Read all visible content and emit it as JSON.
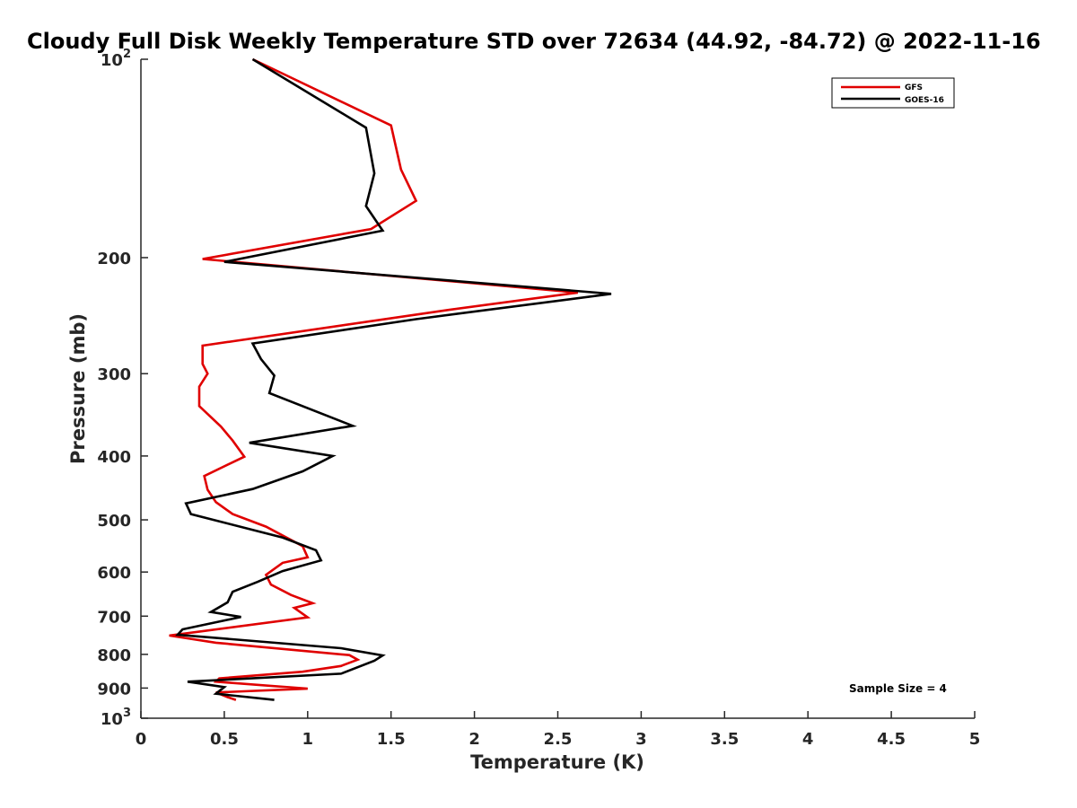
{
  "chart_data": {
    "type": "line",
    "title": "Cloudy Full Disk Weekly Temperature STD over 72634 (44.92, -84.72) @ 2022-11-16",
    "xlabel": "Temperature (K)",
    "ylabel": "Pressure (mb)",
    "xlim": [
      0,
      5
    ],
    "ylim": [
      100,
      1000
    ],
    "yscale": "log",
    "yreversed": true,
    "grid": false,
    "legend_position": "top-right",
    "x_ticks": [
      "0",
      "0.5",
      "1",
      "1.5",
      "2",
      "2.5",
      "3",
      "3.5",
      "4",
      "4.5",
      "5"
    ],
    "y_ticks": [
      {
        "value": 100,
        "base": "10",
        "exp": "2"
      },
      {
        "value": 200,
        "label": "200"
      },
      {
        "value": 300,
        "label": "300"
      },
      {
        "value": 400,
        "label": "400"
      },
      {
        "value": 500,
        "label": "500"
      },
      {
        "value": 600,
        "label": "600"
      },
      {
        "value": 700,
        "label": "700"
      },
      {
        "value": 800,
        "label": "800"
      },
      {
        "value": 900,
        "label": "900"
      },
      {
        "value": 1000,
        "base": "10",
        "exp": "3"
      }
    ],
    "annotation": "Sample Size = 4",
    "series": [
      {
        "name": "GFS",
        "color": "#e00000",
        "points": [
          [
            0.67,
            100
          ],
          [
            1.5,
            126
          ],
          [
            1.56,
            147
          ],
          [
            1.65,
            164
          ],
          [
            1.38,
            181
          ],
          [
            0.37,
            201
          ],
          [
            2.62,
            226
          ],
          [
            1.85,
            240
          ],
          [
            0.37,
            272
          ],
          [
            0.37,
            290
          ],
          [
            0.4,
            300
          ],
          [
            0.35,
            314
          ],
          [
            0.35,
            336
          ],
          [
            0.48,
            361
          ],
          [
            0.55,
            379
          ],
          [
            0.62,
            401
          ],
          [
            0.38,
            429
          ],
          [
            0.4,
            450
          ],
          [
            0.45,
            470
          ],
          [
            0.55,
            490
          ],
          [
            0.75,
            512
          ],
          [
            0.97,
            548
          ],
          [
            1.0,
            570
          ],
          [
            0.85,
            581
          ],
          [
            0.75,
            606
          ],
          [
            0.78,
            627
          ],
          [
            0.9,
            650
          ],
          [
            1.03,
            669
          ],
          [
            0.92,
            680
          ],
          [
            1.0,
            703
          ],
          [
            0.17,
            749
          ],
          [
            0.45,
            768
          ],
          [
            1.25,
            802
          ],
          [
            1.3,
            815
          ],
          [
            1.2,
            833
          ],
          [
            0.97,
            850
          ],
          [
            0.47,
            870
          ],
          [
            0.45,
            880
          ],
          [
            1.0,
            902
          ],
          [
            0.45,
            914
          ],
          [
            0.52,
            929
          ],
          [
            0.57,
            938
          ]
        ]
      },
      {
        "name": "GOES-16",
        "color": "#000000",
        "points": [
          [
            0.67,
            100
          ],
          [
            1.35,
            127
          ],
          [
            1.4,
            149
          ],
          [
            1.35,
            167
          ],
          [
            1.45,
            182
          ],
          [
            0.5,
            203
          ],
          [
            2.82,
            227
          ],
          [
            1.65,
            248
          ],
          [
            0.67,
            270
          ],
          [
            0.72,
            285
          ],
          [
            0.8,
            302
          ],
          [
            0.77,
            321
          ],
          [
            1.27,
            360
          ],
          [
            0.65,
            382
          ],
          [
            1.15,
            400
          ],
          [
            0.97,
            422
          ],
          [
            0.67,
            449
          ],
          [
            0.27,
            472
          ],
          [
            0.3,
            490
          ],
          [
            0.85,
            532
          ],
          [
            1.05,
            556
          ],
          [
            1.08,
            576
          ],
          [
            0.85,
            598
          ],
          [
            0.7,
            621
          ],
          [
            0.55,
            643
          ],
          [
            0.52,
            667
          ],
          [
            0.42,
            690
          ],
          [
            0.6,
            702
          ],
          [
            0.25,
            733
          ],
          [
            0.22,
            747
          ],
          [
            1.2,
            783
          ],
          [
            1.45,
            803
          ],
          [
            1.4,
            818
          ],
          [
            1.2,
            856
          ],
          [
            0.28,
            880
          ],
          [
            0.5,
            897
          ],
          [
            0.45,
            918
          ],
          [
            0.8,
            938
          ]
        ]
      }
    ]
  }
}
